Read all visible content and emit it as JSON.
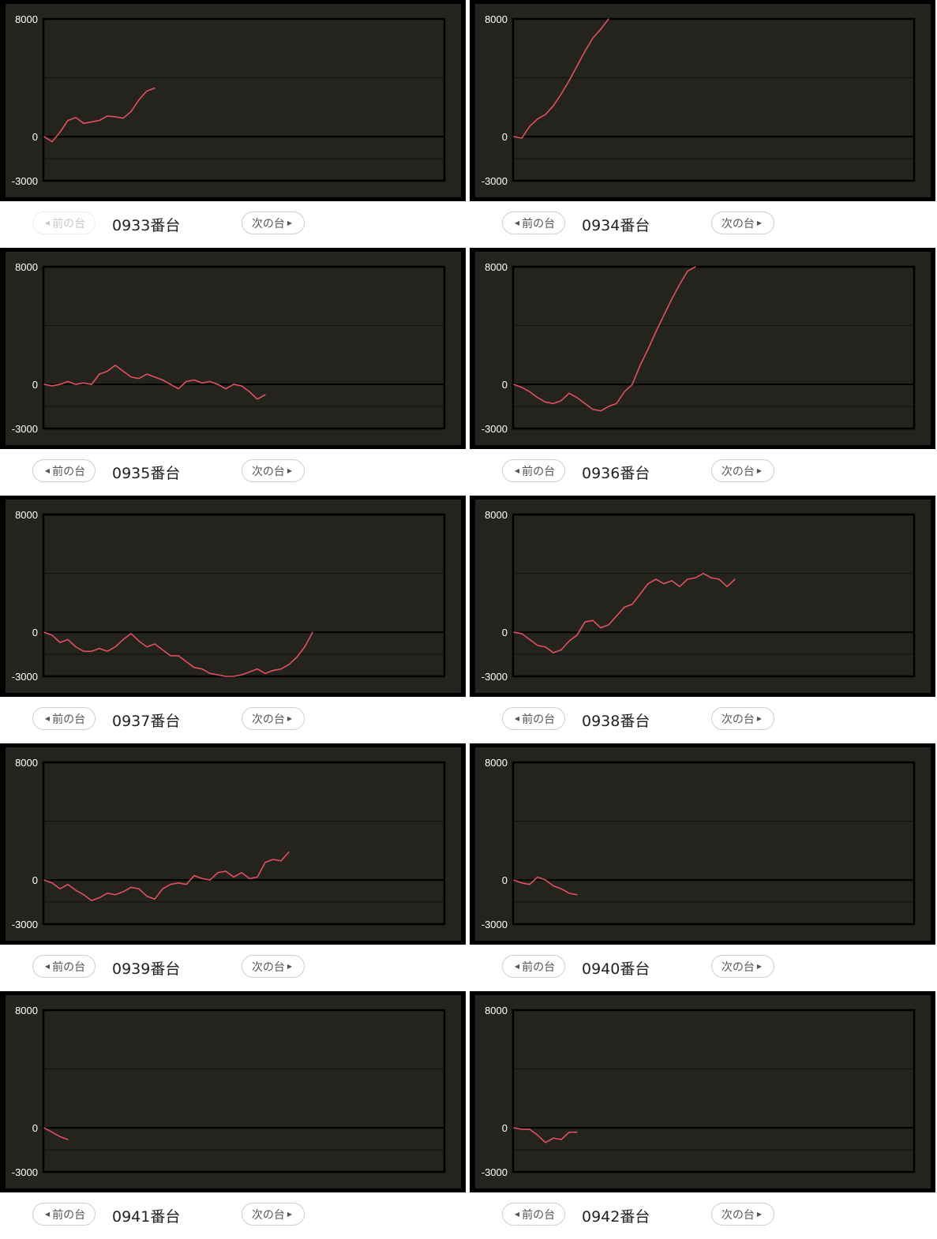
{
  "colors": {
    "line": "#e0525f",
    "panel_bg": "#24231d",
    "border": "#000000",
    "grid": "#111111"
  },
  "buttons": {
    "prev_label": "前の台",
    "next_label": "次の台",
    "prev_icon": "caret-left-icon",
    "next_icon": "caret-right-icon"
  },
  "chart_data": [
    {
      "type": "line",
      "title": "0933番台",
      "prev_disabled": true,
      "ylim": [
        -3000,
        8000
      ],
      "yticks": [
        "8000",
        "0",
        "-3000"
      ],
      "gridlines": [
        4000,
        -1500
      ],
      "values": [
        0,
        -350,
        300,
        1100,
        1300,
        900,
        1000,
        1100,
        1400,
        1350,
        1250,
        1700,
        2500,
        3100,
        3300
      ]
    },
    {
      "type": "line",
      "title": "0934番台",
      "prev_disabled": false,
      "ylim": [
        -3000,
        8000
      ],
      "yticks": [
        "8000",
        "0",
        "-3000"
      ],
      "gridlines": [
        4000,
        -1500
      ],
      "values": [
        0,
        -100,
        700,
        1200,
        1500,
        2100,
        2900,
        3800,
        4800,
        5800,
        6700,
        7300,
        8000
      ]
    },
    {
      "type": "line",
      "title": "0935番台",
      "prev_disabled": false,
      "ylim": [
        -3000,
        8000
      ],
      "yticks": [
        "8000",
        "0",
        "-3000"
      ],
      "gridlines": [
        4000,
        -1500
      ],
      "values": [
        0,
        -100,
        0,
        200,
        0,
        100,
        0,
        700,
        900,
        1300,
        900,
        500,
        400,
        700,
        500,
        300,
        0,
        -300,
        200,
        300,
        100,
        200,
        0,
        -300,
        0,
        -100,
        -500,
        -1000,
        -700
      ]
    },
    {
      "type": "line",
      "title": "0936番台",
      "prev_disabled": false,
      "ylim": [
        -3000,
        8000
      ],
      "yticks": [
        "8000",
        "0",
        "-3000"
      ],
      "gridlines": [
        4000,
        -1500
      ],
      "values": [
        0,
        -200,
        -500,
        -900,
        -1200,
        -1300,
        -1100,
        -600,
        -900,
        -1300,
        -1700,
        -1800,
        -1500,
        -1300,
        -500,
        0,
        1300,
        2400,
        3600,
        4700,
        5800,
        6800,
        7700,
        8000
      ]
    },
    {
      "type": "line",
      "title": "0937番台",
      "prev_disabled": false,
      "ylim": [
        -3000,
        8000
      ],
      "yticks": [
        "8000",
        "0",
        "-3000"
      ],
      "gridlines": [
        4000,
        -1500
      ],
      "values": [
        0,
        -200,
        -700,
        -500,
        -1000,
        -1300,
        -1300,
        -1100,
        -1300,
        -1000,
        -500,
        -100,
        -600,
        -1000,
        -800,
        -1200,
        -1600,
        -1600,
        -2000,
        -2400,
        -2500,
        -2800,
        -2900,
        -3000,
        -3000,
        -2900,
        -2700,
        -2500,
        -2800,
        -2600,
        -2500,
        -2200,
        -1700,
        -1000,
        0
      ]
    },
    {
      "type": "line",
      "title": "0938番台",
      "prev_disabled": false,
      "ylim": [
        -3000,
        8000
      ],
      "yticks": [
        "8000",
        "0",
        "-3000"
      ],
      "gridlines": [
        4000,
        -1500
      ],
      "values": [
        0,
        -100,
        -500,
        -900,
        -1000,
        -1400,
        -1200,
        -600,
        -200,
        700,
        800,
        300,
        500,
        1100,
        1700,
        1900,
        2600,
        3300,
        3600,
        3300,
        3500,
        3100,
        3600,
        3700,
        4000,
        3700,
        3600,
        3100,
        3600
      ]
    },
    {
      "type": "line",
      "title": "0939番台",
      "prev_disabled": false,
      "ylim": [
        -3000,
        8000
      ],
      "yticks": [
        "8000",
        "0",
        "-3000"
      ],
      "gridlines": [
        4000,
        -1500
      ],
      "values": [
        0,
        -200,
        -600,
        -300,
        -700,
        -1000,
        -1400,
        -1200,
        -900,
        -1000,
        -800,
        -500,
        -600,
        -1100,
        -1300,
        -600,
        -300,
        -200,
        -300,
        300,
        100,
        0,
        500,
        600,
        200,
        500,
        100,
        200,
        1200,
        1400,
        1300,
        1900
      ]
    },
    {
      "type": "line",
      "title": "0940番台",
      "prev_disabled": false,
      "ylim": [
        -3000,
        8000
      ],
      "yticks": [
        "8000",
        "0",
        "-3000"
      ],
      "gridlines": [
        4000,
        -1500
      ],
      "values": [
        0,
        -200,
        -300,
        200,
        0,
        -400,
        -600,
        -900,
        -1000
      ]
    },
    {
      "type": "line",
      "title": "0941番台",
      "prev_disabled": false,
      "ylim": [
        -3000,
        8000
      ],
      "yticks": [
        "8000",
        "0",
        "-3000"
      ],
      "gridlines": [
        4000,
        -1500
      ],
      "values": [
        0,
        -300,
        -600,
        -800
      ]
    },
    {
      "type": "line",
      "title": "0942番台",
      "prev_disabled": false,
      "ylim": [
        -3000,
        8000
      ],
      "yticks": [
        "8000",
        "0",
        "-3000"
      ],
      "gridlines": [
        4000,
        -1500
      ],
      "values": [
        0,
        -100,
        -100,
        -500,
        -1000,
        -700,
        -800,
        -300,
        -300
      ]
    }
  ]
}
